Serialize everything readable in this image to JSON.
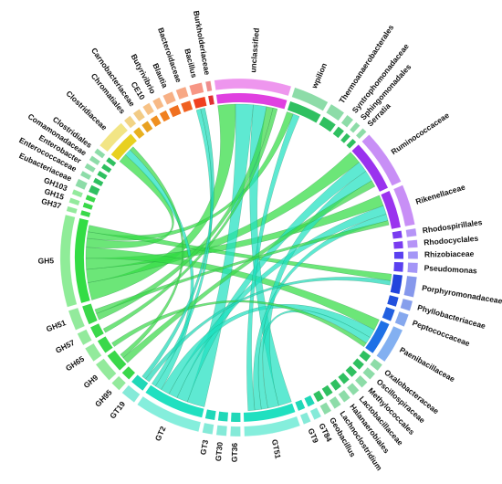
{
  "chart_data": {
    "type": "chord",
    "nodes": [
      {
        "name": "unclassified",
        "value": 30,
        "color": "#e040e0"
      },
      {
        "name": "wpilion",
        "value": 14,
        "color": "#2fc060"
      },
      {
        "name": "Thermoanaerobacterales",
        "value": 6,
        "color": "#2fc060"
      },
      {
        "name": "Syntrophomonadaceae",
        "value": 3,
        "color": "#2fc060"
      },
      {
        "name": "Sphingomonadales",
        "value": 2,
        "color": "#2fc060"
      },
      {
        "name": "Serratia",
        "value": 2,
        "color": "#2fc060"
      },
      {
        "name": "Ruminococcaceae",
        "value": 22,
        "color": "#9a33ee"
      },
      {
        "name": "Rikenellaceae",
        "value": 16,
        "color": "#9a33ee"
      },
      {
        "name": "Rhodospirillales",
        "value": 3,
        "color": "#7a3cf0"
      },
      {
        "name": "Rhodocyclales",
        "value": 3,
        "color": "#7a3cf0"
      },
      {
        "name": "Rhizobiaceae",
        "value": 3,
        "color": "#5a40f0"
      },
      {
        "name": "Pseudomonas",
        "value": 4,
        "color": "#5a40f0"
      },
      {
        "name": "Porphyromonadaceae",
        "value": 8,
        "color": "#2244dd"
      },
      {
        "name": "Phyllobacteriaceae",
        "value": 4,
        "color": "#2250dd"
      },
      {
        "name": "Peptococcaceae",
        "value": 5,
        "color": "#2260e0"
      },
      {
        "name": "Paenibacillaceae",
        "value": 14,
        "color": "#1e70e6"
      },
      {
        "name": "Oxalobacteraceae",
        "value": 3,
        "color": "#2fc060"
      },
      {
        "name": "Oscillospiraceae",
        "value": 3,
        "color": "#2fc060"
      },
      {
        "name": "Methylococcales",
        "value": 3,
        "color": "#2fc060"
      },
      {
        "name": "Lactobacillaceae",
        "value": 3,
        "color": "#2fc060"
      },
      {
        "name": "Halanaerobiales",
        "value": 3,
        "color": "#2fc060"
      },
      {
        "name": "Lachnoclostridium",
        "value": 3,
        "color": "#2fc060"
      },
      {
        "name": "Geobacillus",
        "value": 3,
        "color": "#2fc060"
      },
      {
        "name": "GT84",
        "value": 3,
        "color": "#20d8b8"
      },
      {
        "name": "GT9",
        "value": 3,
        "color": "#20d8b8"
      },
      {
        "name": "GT51",
        "value": 22,
        "color": "#20e0c0"
      },
      {
        "name": "GT36",
        "value": 4,
        "color": "#20d8b8"
      },
      {
        "name": "GT30",
        "value": 4,
        "color": "#20d8b8"
      },
      {
        "name": "GT3",
        "value": 4,
        "color": "#20d8b8"
      },
      {
        "name": "GT2",
        "value": 26,
        "color": "#20e0c0"
      },
      {
        "name": "GT19",
        "value": 6,
        "color": "#20d8b8"
      },
      {
        "name": "GH95",
        "value": 4,
        "color": "#3ad84a"
      },
      {
        "name": "GH9",
        "value": 8,
        "color": "#3ad84a"
      },
      {
        "name": "GH65",
        "value": 6,
        "color": "#3ad84a"
      },
      {
        "name": "GH57",
        "value": 5,
        "color": "#3ad84a"
      },
      {
        "name": "GH51",
        "value": 8,
        "color": "#3ad84a"
      },
      {
        "name": "GH5",
        "value": 36,
        "color": "#33dd44"
      },
      {
        "name": "GH37",
        "value": 2,
        "color": "#3ad84a"
      },
      {
        "name": "GH15",
        "value": 2,
        "color": "#3ad84a"
      },
      {
        "name": "GH103",
        "value": 2,
        "color": "#3ad84a"
      },
      {
        "name": "Eubacteriaceae",
        "value": 3,
        "color": "#2fc060"
      },
      {
        "name": "Enterococcaceae",
        "value": 2,
        "color": "#2fc060"
      },
      {
        "name": "Enterobacter",
        "value": 2,
        "color": "#2fc060"
      },
      {
        "name": "Comamonadaceae",
        "value": 2,
        "color": "#2fc060"
      },
      {
        "name": "Clostridiales",
        "value": 2,
        "color": "#2fc060"
      },
      {
        "name": "Clostridiaceae",
        "value": 12,
        "color": "#e8d020"
      },
      {
        "name": "Chromatiales",
        "value": 3,
        "color": "#e8b020"
      },
      {
        "name": "Carnobacteriaceae",
        "value": 3,
        "color": "#e8a020"
      },
      {
        "name": "CE10",
        "value": 3,
        "color": "#f09020"
      },
      {
        "name": "Butyrivibrio",
        "value": 3,
        "color": "#f08020"
      },
      {
        "name": "Blautia",
        "value": 4,
        "color": "#f07020"
      },
      {
        "name": "Bacteroidaceae",
        "value": 4,
        "color": "#f06020"
      },
      {
        "name": "Bacillus",
        "value": 5,
        "color": "#f04020"
      },
      {
        "name": "Burkholderiaceae",
        "value": 2,
        "color": "#e03030"
      }
    ],
    "links": [
      {
        "source": 36,
        "target": 0,
        "value": 8
      },
      {
        "source": 36,
        "target": 6,
        "value": 6
      },
      {
        "source": 36,
        "target": 7,
        "value": 5
      },
      {
        "source": 36,
        "target": 15,
        "value": 5
      },
      {
        "source": 36,
        "target": 45,
        "value": 4
      },
      {
        "source": 36,
        "target": 1,
        "value": 3
      },
      {
        "source": 36,
        "target": 12,
        "value": 3
      },
      {
        "source": 29,
        "target": 0,
        "value": 8
      },
      {
        "source": 29,
        "target": 6,
        "value": 5
      },
      {
        "source": 29,
        "target": 7,
        "value": 4
      },
      {
        "source": 29,
        "target": 15,
        "value": 4
      },
      {
        "source": 29,
        "target": 45,
        "value": 3
      },
      {
        "source": 29,
        "target": 52,
        "value": 2
      },
      {
        "source": 25,
        "target": 0,
        "value": 6
      },
      {
        "source": 25,
        "target": 6,
        "value": 5
      },
      {
        "source": 25,
        "target": 15,
        "value": 3
      },
      {
        "source": 25,
        "target": 7,
        "value": 3
      },
      {
        "source": 25,
        "target": 1,
        "value": 3
      },
      {
        "source": 32,
        "target": 6,
        "value": 3
      },
      {
        "source": 32,
        "target": 45,
        "value": 2
      },
      {
        "source": 35,
        "target": 0,
        "value": 3
      },
      {
        "source": 35,
        "target": 7,
        "value": 2
      },
      {
        "source": 33,
        "target": 15,
        "value": 2
      },
      {
        "source": 34,
        "target": 0,
        "value": 2
      },
      {
        "source": 30,
        "target": 12,
        "value": 2
      },
      {
        "source": 30,
        "target": 52,
        "value": 2
      }
    ]
  }
}
